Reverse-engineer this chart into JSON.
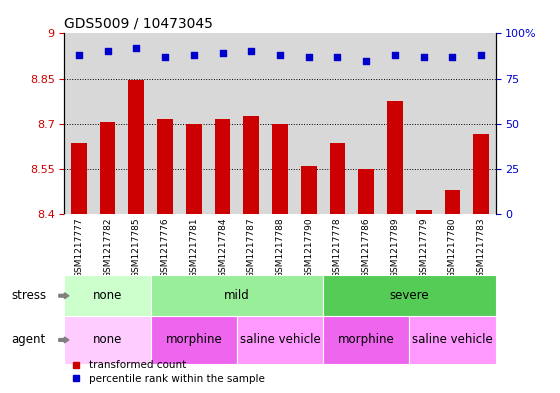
{
  "title": "GDS5009 / 10473045",
  "samples": [
    "GSM1217777",
    "GSM1217782",
    "GSM1217785",
    "GSM1217776",
    "GSM1217781",
    "GSM1217784",
    "GSM1217787",
    "GSM1217788",
    "GSM1217790",
    "GSM1217778",
    "GSM1217786",
    "GSM1217789",
    "GSM1217779",
    "GSM1217780",
    "GSM1217783"
  ],
  "transformed_count": [
    8.635,
    8.705,
    8.845,
    8.715,
    8.7,
    8.715,
    8.725,
    8.7,
    8.56,
    8.635,
    8.55,
    8.775,
    8.415,
    8.48,
    8.665
  ],
  "percentile_rank": [
    88,
    90,
    92,
    87,
    88,
    89,
    90,
    88,
    87,
    87,
    85,
    88,
    87,
    87,
    88
  ],
  "ylim_left": [
    8.4,
    9.0
  ],
  "ylim_right": [
    0,
    100
  ],
  "yticks_left": [
    8.4,
    8.55,
    8.7,
    8.85,
    9.0
  ],
  "ytick_labels_left": [
    "8.4",
    "8.55",
    "8.7",
    "8.85",
    "9"
  ],
  "yticks_right": [
    0,
    25,
    50,
    75,
    100
  ],
  "ytick_labels_right": [
    "0",
    "25",
    "50",
    "75",
    "100%"
  ],
  "hlines": [
    8.55,
    8.7,
    8.85
  ],
  "bar_color": "#cc0000",
  "dot_color": "#0000cc",
  "bar_bottom": 8.4,
  "plot_bg_color": "#d8d8d8",
  "label_band_bg": "#c8c8c8",
  "stress_groups": [
    {
      "label": "none",
      "start": 0,
      "end": 3,
      "color": "#ccffcc"
    },
    {
      "label": "mild",
      "start": 3,
      "end": 9,
      "color": "#99ee99"
    },
    {
      "label": "severe",
      "start": 9,
      "end": 15,
      "color": "#55cc55"
    }
  ],
  "agent_groups": [
    {
      "label": "none",
      "start": 0,
      "end": 3,
      "color": "#ffccff"
    },
    {
      "label": "morphine",
      "start": 3,
      "end": 6,
      "color": "#ee66ee"
    },
    {
      "label": "saline vehicle",
      "start": 6,
      "end": 9,
      "color": "#ff99ff"
    },
    {
      "label": "morphine",
      "start": 9,
      "end": 12,
      "color": "#ee66ee"
    },
    {
      "label": "saline vehicle",
      "start": 12,
      "end": 15,
      "color": "#ff99ff"
    }
  ],
  "legend_red_label": "transformed count",
  "legend_blue_label": "percentile rank within the sample",
  "left_tick_color": "#cc0000",
  "right_tick_color": "#0000cc",
  "stress_label": "stress",
  "agent_label": "agent",
  "fig_width": 5.6,
  "fig_height": 3.93,
  "dpi": 100
}
